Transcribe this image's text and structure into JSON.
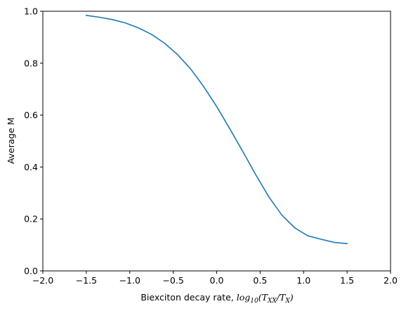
{
  "chart_data": {
    "type": "line",
    "title": "",
    "xlabel_prefix": "Biexciton decay rate, ",
    "xlabel_math": {
      "log": "log",
      "log_sub": "10",
      "open": "(",
      "t1": "T",
      "t1_sub": "XX",
      "slash": "/",
      "t2": "T",
      "t2_sub": "X",
      "close": ")"
    },
    "ylabel": "Average M",
    "xlim": [
      -2.0,
      2.0
    ],
    "ylim": [
      0.0,
      1.0
    ],
    "x_ticks": [
      -2.0,
      -1.5,
      -1.0,
      -0.5,
      0.0,
      0.5,
      1.0,
      1.5,
      2.0
    ],
    "x_tick_labels": [
      "−2.0",
      "−1.5",
      "−1.0",
      "−0.5",
      "0.0",
      "0.5",
      "1.0",
      "1.5",
      "2.0"
    ],
    "y_ticks": [
      0.0,
      0.2,
      0.4,
      0.6,
      0.8,
      1.0
    ],
    "y_tick_labels": [
      "0.0",
      "0.2",
      "0.4",
      "0.6",
      "0.8",
      "1.0"
    ],
    "grid": false,
    "line_color": "#1f77b4",
    "series": [
      {
        "x": [
          -1.5,
          -1.35,
          -1.2,
          -1.05,
          -0.9,
          -0.75,
          -0.6,
          -0.45,
          -0.3,
          -0.15,
          0.0,
          0.15,
          0.3,
          0.45,
          0.6,
          0.75,
          0.9,
          1.05,
          1.2,
          1.35,
          1.5
        ],
        "values": [
          0.984,
          0.977,
          0.968,
          0.955,
          0.936,
          0.911,
          0.877,
          0.833,
          0.778,
          0.71,
          0.633,
          0.548,
          0.46,
          0.37,
          0.285,
          0.215,
          0.165,
          0.135,
          0.122,
          0.11,
          0.105
        ]
      }
    ]
  }
}
